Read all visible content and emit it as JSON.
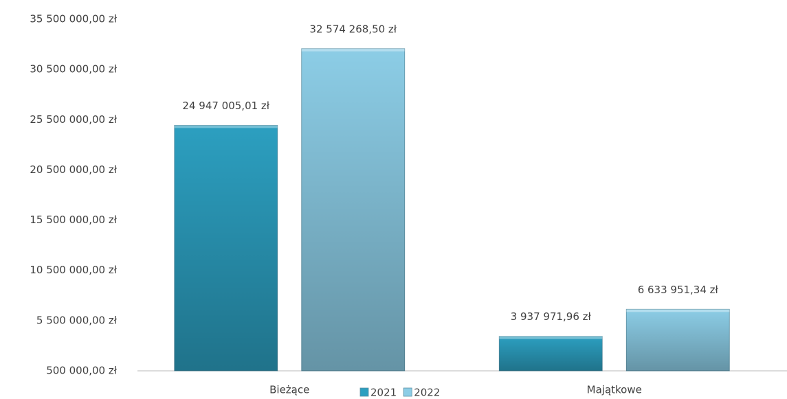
{
  "chart_data": {
    "type": "bar",
    "categories": [
      "Bieżące",
      "Majątkowe"
    ],
    "series": [
      {
        "name": "2021",
        "color": "#2c9fc0",
        "values": [
          24947005.01,
          3937971.96
        ],
        "value_labels": [
          "24 947 005,01 zł",
          "3 937 971,96 zł"
        ]
      },
      {
        "name": "2022",
        "color": "#8ccde6",
        "values": [
          32574268.5,
          6633951.34
        ],
        "value_labels": [
          "32 574 268,50 zł",
          "6 633 951,34 zł"
        ]
      }
    ],
    "ylim": [
      500000,
      35500000
    ],
    "yticks": [
      {
        "value": 500000,
        "label": "500 000,00 zł"
      },
      {
        "value": 5500000,
        "label": "5 500 000,00 zł"
      },
      {
        "value": 10500000,
        "label": "10 500 000,00 zł"
      },
      {
        "value": 15500000,
        "label": "15 500 000,00 zł"
      },
      {
        "value": 20500000,
        "label": "20 500 000,00 zł"
      },
      {
        "value": 25500000,
        "label": "25 500 000,00 zł"
      },
      {
        "value": 30500000,
        "label": "30 500 000,00 zł"
      },
      {
        "value": 35500000,
        "label": "35 500 000,00 zł"
      }
    ],
    "grid": false
  }
}
